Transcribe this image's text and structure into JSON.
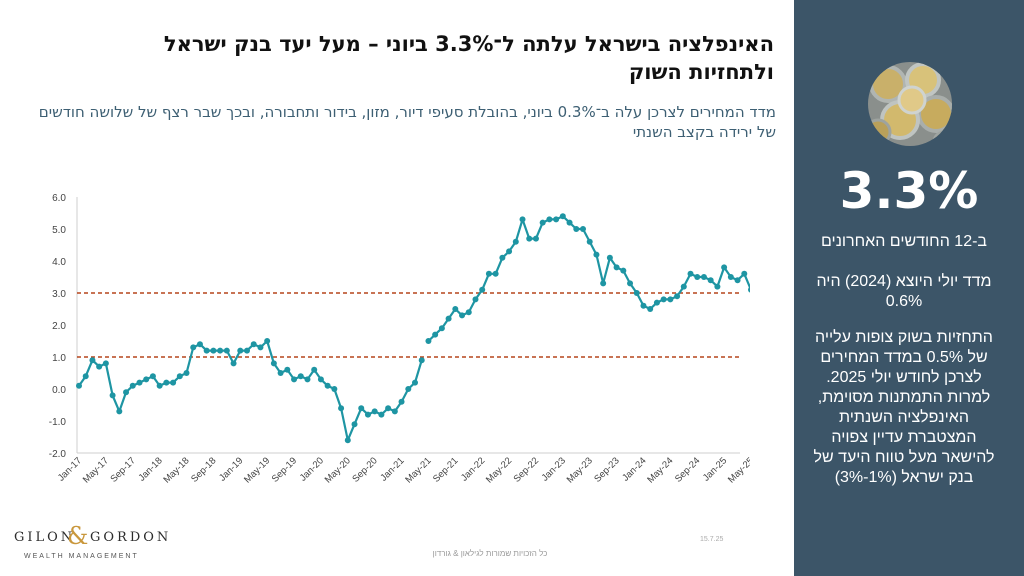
{
  "slide": {
    "title": "האינפלציה בישראל עלתה ל־3.3% ביוני – מעל יעד בנק ישראל ולתחזיות השוק",
    "subtitle": "מדד המחירים לצרכן עלה ב־0.3% ביוני, בהובלת סעיפי דיור, מזון, בידור ותחבורה, ובכך שבר רצף של שלושה חודשים של ירידה בקצב השנתי",
    "date": "15.7.25",
    "footer": "כל הזכויות שמורות לגילאון & גורדון"
  },
  "brand": {
    "name_left": "GILON",
    "amp": "&",
    "name_right": "GORDON",
    "tagline": "WEALTH MANAGEMENT",
    "accent": "#c9973c"
  },
  "sidebar": {
    "image_icon": "coins-photo",
    "big_value": "3.3%",
    "big_caption": "ב-12 החודשים האחרונים",
    "note_1": "מדד יולי היוצא (2024) היה 0.6%",
    "note_2": "התחזיות בשוק צופות עלייה של 0.5% במדד המחירים לצרכן לחודש יולי 2025. למרות התמתנות מסוימת, האינפלציה השנתית המצטברת עדיין צפויה להישאר מעל טווח היעד של בנק ישראל (1%-3%)",
    "bg_color": "#3c5568"
  },
  "chart_data": {
    "type": "line",
    "title": "",
    "xlabel": "",
    "ylabel": "",
    "ylim": [
      -2.0,
      6.0
    ],
    "y_ticks": [
      "-2.0",
      "-1.0",
      "0.0",
      "1.0",
      "2.0",
      "3.0",
      "4.0",
      "5.0",
      "6.0"
    ],
    "x_tick_labels": [
      "Jan-17",
      "May-17",
      "Sep-17",
      "Jan-18",
      "May-18",
      "Sep-18",
      "Jan-19",
      "May-19",
      "Sep-19",
      "Jan-20",
      "May-20",
      "Sep-20",
      "Jan-21",
      "May-21",
      "Sep-21",
      "Jan-22",
      "May-22",
      "Sep-22",
      "Jan-23",
      "May-23",
      "Sep-23",
      "Jan-24",
      "May-24",
      "Sep-24",
      "Jan-25",
      "May-25"
    ],
    "start_month": "Jan-17",
    "gap_after_month": "Apr-21",
    "reference_lines": [
      1.0,
      3.0
    ],
    "series": [
      {
        "color": "#1e95a3",
        "values": [
          0.1,
          0.4,
          0.9,
          0.7,
          0.8,
          -0.2,
          -0.7,
          -0.1,
          0.1,
          0.2,
          0.3,
          0.4,
          0.1,
          0.2,
          0.2,
          0.4,
          0.5,
          1.3,
          1.4,
          1.2,
          1.2,
          1.2,
          1.2,
          0.8,
          1.2,
          1.2,
          1.4,
          1.3,
          1.5,
          0.8,
          0.5,
          0.6,
          0.3,
          0.4,
          0.3,
          0.6,
          0.3,
          0.1,
          0.0,
          -0.6,
          -1.6,
          -1.1,
          -0.6,
          -0.8,
          -0.7,
          -0.8,
          -0.6,
          -0.7,
          -0.4,
          0.0,
          0.2,
          0.9,
          1.5,
          1.7,
          1.9,
          2.2,
          2.5,
          2.3,
          2.4,
          2.8,
          3.1,
          3.6,
          3.6,
          4.1,
          4.3,
          4.6,
          5.3,
          4.7,
          4.7,
          5.2,
          5.3,
          5.3,
          5.4,
          5.2,
          5.0,
          5.0,
          4.6,
          4.2,
          3.3,
          4.1,
          3.8,
          3.7,
          3.3,
          3.0,
          2.6,
          2.5,
          2.7,
          2.8,
          2.8,
          2.9,
          3.2,
          3.6,
          3.5,
          3.5,
          3.4,
          3.2,
          3.8,
          3.5,
          3.4,
          3.6,
          3.1,
          3.3
        ]
      }
    ],
    "grid": false
  }
}
